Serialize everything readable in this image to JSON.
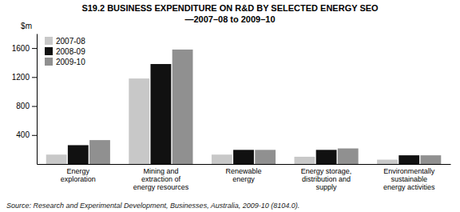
{
  "chart_data": {
    "type": "bar",
    "title": "S19.2   BUSINESS EXPENDITURE ON R&D BY SELECTED ENERGY SEO",
    "subtitle": "—2007–08 to 2009–10",
    "ylabel": "$m",
    "categories": [
      "Energy\nexploration",
      "Mining and\nextraction of\nenergy resources",
      "Renewable\nenergy",
      "Energy storage,\ndistribution and\nsupply",
      "Environmentally\nsustainable\nenergy activities"
    ],
    "series": [
      {
        "name": "2007-08",
        "color": "#c8c8c8",
        "values": [
          130,
          1180,
          130,
          100,
          60
        ]
      },
      {
        "name": "2008-09",
        "color": "#111111",
        "values": [
          260,
          1380,
          195,
          195,
          120
        ]
      },
      {
        "name": "2009-10",
        "color": "#909090",
        "values": [
          330,
          1580,
          195,
          215,
          120
        ]
      }
    ],
    "ylim": [
      0,
      1800
    ],
    "yticks": [
      400,
      800,
      1200,
      1600
    ],
    "grid": false,
    "legend": "upper left",
    "annotations": [
      "Source: Research and Experimental Development, Businesses, Australia, 2009-10 (8104.0)."
    ]
  }
}
